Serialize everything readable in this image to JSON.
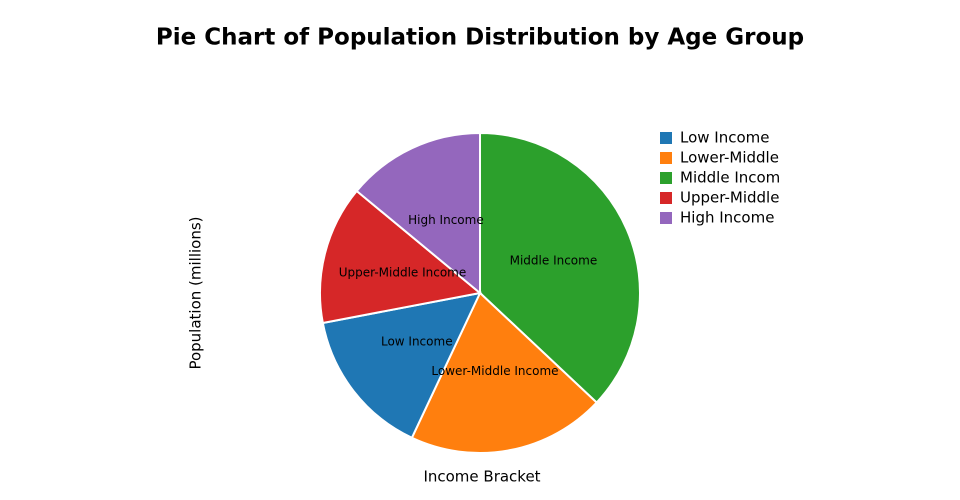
{
  "chart_data": {
    "type": "pie",
    "title": "Pie Chart of Population Distribution by Age Group",
    "x_label": "Income Bracket",
    "y_label": "Population (millions)",
    "categories": [
      "Low Income",
      "Lower-Middle Income",
      "Middle Income",
      "Upper-Middle Income",
      "High Income"
    ],
    "values": [
      15,
      20,
      37,
      14,
      14
    ],
    "colors": [
      "#1f77b4",
      "#ff7f0e",
      "#2ca02c",
      "#d62728",
      "#9467bd"
    ],
    "slice_order": [
      "Middle Income",
      "Lower-Middle Income",
      "Low Income",
      "Upper-Middle Income",
      "High Income"
    ]
  }
}
